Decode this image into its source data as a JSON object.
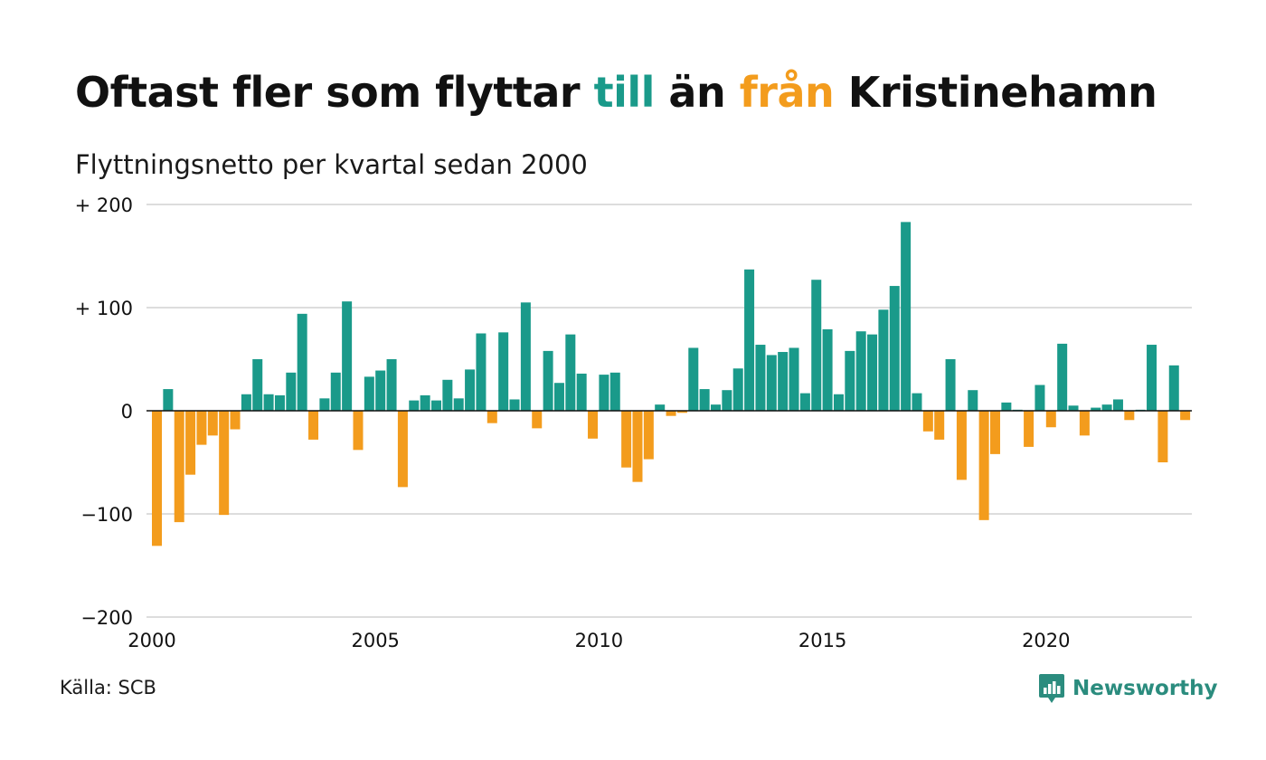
{
  "header": {
    "title_part1": "Oftast fler som flyttar ",
    "title_highlight1": "till",
    "title_part2": " än ",
    "title_highlight2": "från",
    "title_part3": " Kristinehamn",
    "subtitle": "Flyttningsnetto per kvartal sedan 2000"
  },
  "footer": {
    "source": "Källa: SCB",
    "brand": "Newsworthy"
  },
  "colors": {
    "positive": "#1a9a8a",
    "negative": "#f39c1d",
    "grid": "#dddddd",
    "brand": "#2b8c7e"
  },
  "icons": {
    "brand_logo": "newsworthy-bar-chart-bubble-icon"
  },
  "chart_data": {
    "type": "bar",
    "title": "Oftast fler som flyttar till än från Kristinehamn",
    "subtitle": "Flyttningsnetto per kvartal sedan 2000",
    "xlabel": "",
    "ylabel": "",
    "x_start": 2000,
    "quarters_per_year": 4,
    "x_ticks": [
      "2000",
      "2005",
      "2010",
      "2015",
      "2020"
    ],
    "y_ticks": [
      {
        "value": 200,
        "label": "+ 200"
      },
      {
        "value": 100,
        "label": "+ 100"
      },
      {
        "value": 0,
        "label": "0"
      },
      {
        "value": -100,
        "label": "−100"
      },
      {
        "value": -200,
        "label": "−200"
      }
    ],
    "ylim": [
      -200,
      200
    ],
    "grid": true,
    "values": [
      -131,
      21,
      -108,
      -62,
      -33,
      -24,
      -101,
      -18,
      16,
      50,
      16,
      15,
      37,
      94,
      -28,
      12,
      37,
      106,
      -38,
      33,
      39,
      50,
      -74,
      10,
      15,
      10,
      30,
      12,
      40,
      75,
      -12,
      76,
      11,
      105,
      -17,
      58,
      27,
      74,
      36,
      -27,
      35,
      37,
      -55,
      -69,
      -47,
      6,
      -5,
      -2,
      61,
      21,
      6,
      20,
      41,
      137,
      64,
      54,
      57,
      61,
      17,
      127,
      79,
      16,
      58,
      77,
      74,
      98,
      121,
      183,
      17,
      -20,
      -28,
      50,
      -67,
      20,
      -106,
      -42,
      8,
      1,
      -35,
      25,
      -16,
      65,
      5,
      -24,
      3,
      6,
      11,
      -9,
      1,
      64,
      -50,
      44,
      -9
    ]
  }
}
